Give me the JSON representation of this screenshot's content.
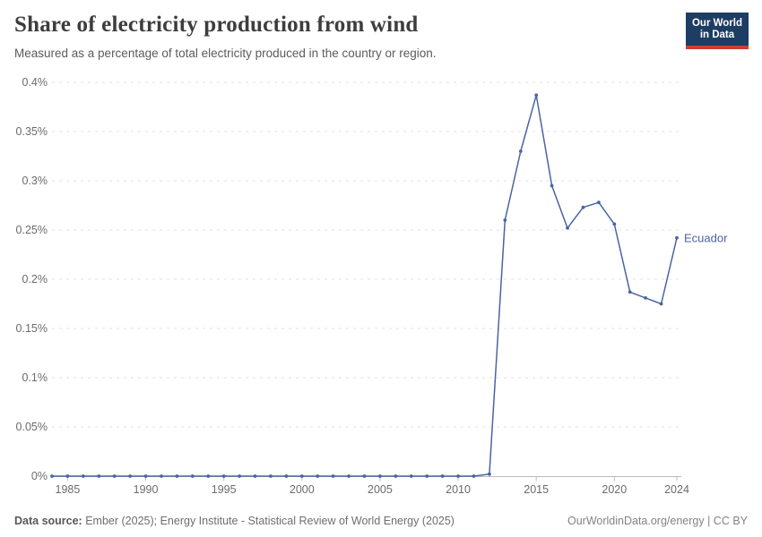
{
  "header": {
    "title": "Share of electricity production from wind",
    "subtitle": "Measured as a percentage of total electricity produced in the country or region.",
    "logo_line1": "Our World",
    "logo_line2": "in Data",
    "logo_bg_color": "#1d3d63",
    "logo_stripe_color": "#cf3d32"
  },
  "footer": {
    "source_label": "Data source:",
    "source_text": "Ember (2025); Energy Institute - Statistical Review of World Energy (2025)",
    "right_text": "OurWorldinData.org/energy | CC BY"
  },
  "chart_data": {
    "type": "line",
    "title": "Share of electricity production from wind",
    "xlabel": "",
    "ylabel": "",
    "xlim": [
      1984,
      2024
    ],
    "ylim": [
      0,
      0.4
    ],
    "grid": "horizontal-dashed",
    "grid_color": "#e2e2e2",
    "axis_color": "#bcbcbc",
    "x_ticks": [
      1985,
      1990,
      1995,
      2000,
      2005,
      2010,
      2015,
      2020,
      2024
    ],
    "x_tick_labels": [
      "1985",
      "1990",
      "1995",
      "2000",
      "2005",
      "2010",
      "2015",
      "2020",
      "2024"
    ],
    "y_ticks": [
      0,
      0.05,
      0.1,
      0.15,
      0.2,
      0.25,
      0.3,
      0.35,
      0.4
    ],
    "y_tick_labels": [
      "0%",
      "0.05%",
      "0.1%",
      "0.15%",
      "0.2%",
      "0.25%",
      "0.3%",
      "0.35%",
      "0.4%"
    ],
    "series": [
      {
        "name": "Ecuador",
        "color": "#4a64a0",
        "x": [
          1984,
          1985,
          1986,
          1987,
          1988,
          1989,
          1990,
          1991,
          1992,
          1993,
          1994,
          1995,
          1996,
          1997,
          1998,
          1999,
          2000,
          2001,
          2002,
          2003,
          2004,
          2005,
          2006,
          2007,
          2008,
          2009,
          2010,
          2011,
          2012,
          2013,
          2014,
          2015,
          2016,
          2017,
          2018,
          2019,
          2020,
          2021,
          2022,
          2023,
          2024
        ],
        "values": [
          0,
          0,
          0,
          0,
          0,
          0,
          0,
          0,
          0,
          0,
          0,
          0,
          0,
          0,
          0,
          0,
          0,
          0,
          0,
          0,
          0,
          0,
          0,
          0,
          0,
          0,
          0,
          0,
          0.002,
          0.26,
          0.33,
          0.387,
          0.295,
          0.252,
          0.273,
          0.278,
          0.256,
          0.187,
          0.181,
          0.175,
          0.242
        ]
      }
    ]
  }
}
